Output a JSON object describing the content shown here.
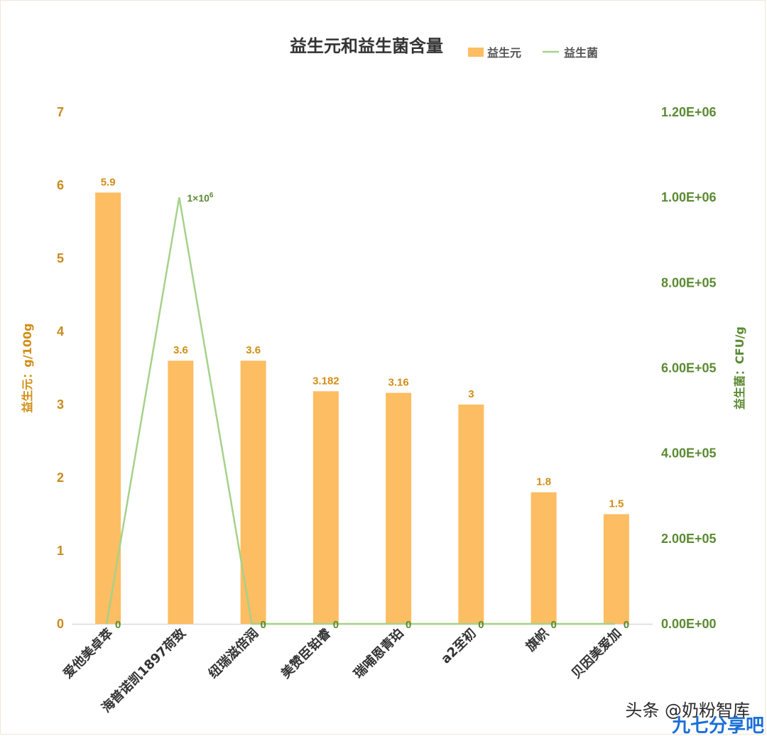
{
  "chart_data": {
    "type": "bar",
    "title": "益生元和益生菌含量",
    "categories": [
      "爱他美卓萃",
      "海普诺凯1897荷致",
      "纽瑞滋倍润",
      "美赞臣铂睿",
      "瑞哺恩青珀",
      "a2至初",
      "旗帜",
      "贝因美爱加"
    ],
    "series": [
      {
        "name": "益生元",
        "type": "bar",
        "axis": "left",
        "values": [
          5.9,
          3.6,
          3.6,
          3.182,
          3.16,
          3,
          1.8,
          1.5
        ],
        "labels": [
          "5.9",
          "3.6",
          "3.6",
          "3.182",
          "3.16",
          "3",
          "1.8",
          "1.5"
        ],
        "color": "#fdbd62"
      },
      {
        "name": "益生菌",
        "type": "line",
        "axis": "right",
        "values": [
          0,
          1000000,
          0,
          0,
          0,
          0,
          0,
          0
        ],
        "labels": [
          "0",
          "",
          "0",
          "0",
          "0",
          "0",
          "0",
          "0"
        ],
        "color": "#a6d18a"
      }
    ],
    "annotation": {
      "text_base": "1×10",
      "text_exp": "6",
      "category": "海普诺凯1897荷致"
    },
    "ylabel": "益生元：g/100g",
    "y2label": "益生菌：CFU/g",
    "ylim": [
      0,
      7
    ],
    "y2lim": [
      0,
      1200000
    ],
    "yticks": [
      "0",
      "1",
      "2",
      "3",
      "4",
      "5",
      "6",
      "7"
    ],
    "y2ticks": [
      "0.00E+00",
      "2.00E+05",
      "4.00E+05",
      "6.00E+05",
      "8.00E+05",
      "1.00E+06",
      "1.20E+06"
    ],
    "legend": "top",
    "grid": false
  },
  "watermark": {
    "line1": "头条 @奶粉智库",
    "line2": "九七分享吧"
  },
  "colors": {
    "left_axis": "#c98a1c",
    "right_axis": "#5b8a32",
    "bar": "#fdbd62",
    "line": "#a6d18a"
  }
}
